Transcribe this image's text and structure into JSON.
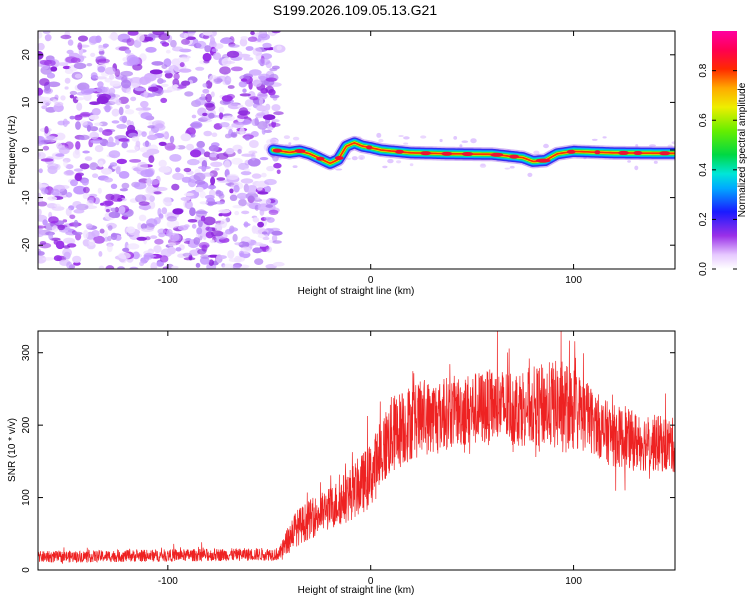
{
  "title": "S199.2026.109.05.13.G21",
  "colors": {
    "snr_line": "#ee2222",
    "noise_dots": "#9a30e8",
    "frame": "#000000"
  },
  "colorbar": {
    "label": "Normalized spectral amplitude",
    "ticks": [
      "0.0",
      "0.2",
      "0.4",
      "0.6",
      "0.8"
    ],
    "tick_values": [
      0.0,
      0.2,
      0.4,
      0.6,
      0.8
    ],
    "range": [
      0.0,
      0.96
    ],
    "colormap": "rainbow (violet→blue→cyan→green→yellow→red→magenta)"
  },
  "chart_data": [
    {
      "type": "heatmap",
      "name": "spectrogram",
      "xlabel": "Height of straight line (km)",
      "ylabel": "Frequency (Hz)",
      "xlim": [
        -164,
        150
      ],
      "ylim": [
        -25,
        25
      ],
      "x_ticks": [
        "-100",
        "0",
        "100"
      ],
      "x_tick_values": [
        -100,
        0,
        100
      ],
      "y_ticks": [
        "20",
        "10",
        "0",
        "-10",
        "-20"
      ],
      "y_tick_values": [
        20,
        10,
        0,
        -10,
        -20
      ],
      "noise_region": [
        -164,
        -48
      ],
      "ridge": [
        [
          -48,
          0.0
        ],
        [
          -40,
          -0.5
        ],
        [
          -35,
          -0.2
        ],
        [
          -30,
          -0.8
        ],
        [
          -25,
          -1.8
        ],
        [
          -20,
          -2.8
        ],
        [
          -16,
          -2.0
        ],
        [
          -12,
          0.8
        ],
        [
          -8,
          1.5
        ],
        [
          -4,
          0.8
        ],
        [
          0,
          0.5
        ],
        [
          5,
          0.0
        ],
        [
          10,
          -0.2
        ],
        [
          20,
          -0.6
        ],
        [
          40,
          -0.8
        ],
        [
          60,
          -0.9
        ],
        [
          75,
          -1.6
        ],
        [
          80,
          -2.4
        ],
        [
          86,
          -2.2
        ],
        [
          92,
          -0.8
        ],
        [
          100,
          -0.3
        ],
        [
          120,
          -0.6
        ],
        [
          150,
          -0.7
        ]
      ]
    },
    {
      "type": "line",
      "name": "snr",
      "xlabel": "Height of straight line (km)",
      "ylabel": "SNR (10 * v/v)",
      "xlim": [
        -164,
        150
      ],
      "ylim": [
        0,
        330
      ],
      "x_ticks": [
        "-100",
        "0",
        "100"
      ],
      "x_tick_values": [
        -100,
        0,
        100
      ],
      "y_ticks": [
        "0",
        "100",
        "200",
        "300"
      ],
      "y_tick_values": [
        0,
        100,
        200,
        300
      ],
      "trend": [
        [
          -164,
          18
        ],
        [
          -100,
          20
        ],
        [
          -45,
          22
        ],
        [
          -38,
          55
        ],
        [
          -30,
          70
        ],
        [
          -20,
          85
        ],
        [
          -10,
          105
        ],
        [
          0,
          130
        ],
        [
          5,
          160
        ],
        [
          10,
          185
        ],
        [
          20,
          205
        ],
        [
          30,
          212
        ],
        [
          40,
          218
        ],
        [
          50,
          222
        ],
        [
          60,
          225
        ],
        [
          70,
          225
        ],
        [
          80,
          226
        ],
        [
          90,
          228
        ],
        [
          100,
          222
        ],
        [
          110,
          205
        ],
        [
          115,
          192
        ],
        [
          120,
          185
        ],
        [
          130,
          178
        ],
        [
          140,
          175
        ],
        [
          150,
          172
        ]
      ],
      "spread": [
        [
          -164,
          8
        ],
        [
          -45,
          9
        ],
        [
          -38,
          25
        ],
        [
          -20,
          30
        ],
        [
          0,
          45
        ],
        [
          10,
          55
        ],
        [
          40,
          50
        ],
        [
          80,
          55
        ],
        [
          95,
          65
        ],
        [
          110,
          45
        ],
        [
          150,
          38
        ]
      ]
    }
  ]
}
